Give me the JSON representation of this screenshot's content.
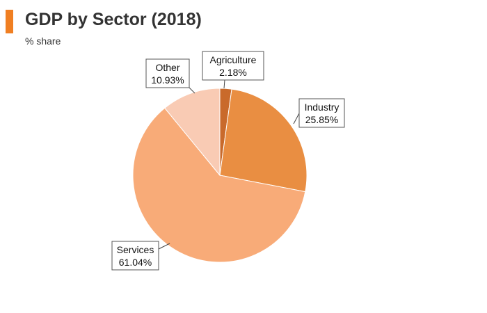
{
  "title": "GDP by Sector (2018)",
  "subtitle": "% share",
  "chart_data": {
    "type": "pie",
    "title": "GDP by Sector (2018)",
    "subtitle": "% share",
    "slices": [
      {
        "label": "Agriculture",
        "value": 2.18,
        "display": "2.18%",
        "color": "#c96a2b"
      },
      {
        "label": "Industry",
        "value": 25.85,
        "display": "25.85%",
        "color": "#e98e42"
      },
      {
        "label": "Services",
        "value": 61.04,
        "display": "61.04%",
        "color": "#f8ab78"
      },
      {
        "label": "Other",
        "value": 10.93,
        "display": "10.93%",
        "color": "#f9cbb4"
      }
    ],
    "start_angle": "12 o'clock",
    "direction": "clockwise",
    "legend": "none",
    "data_labels": "callout boxes"
  }
}
